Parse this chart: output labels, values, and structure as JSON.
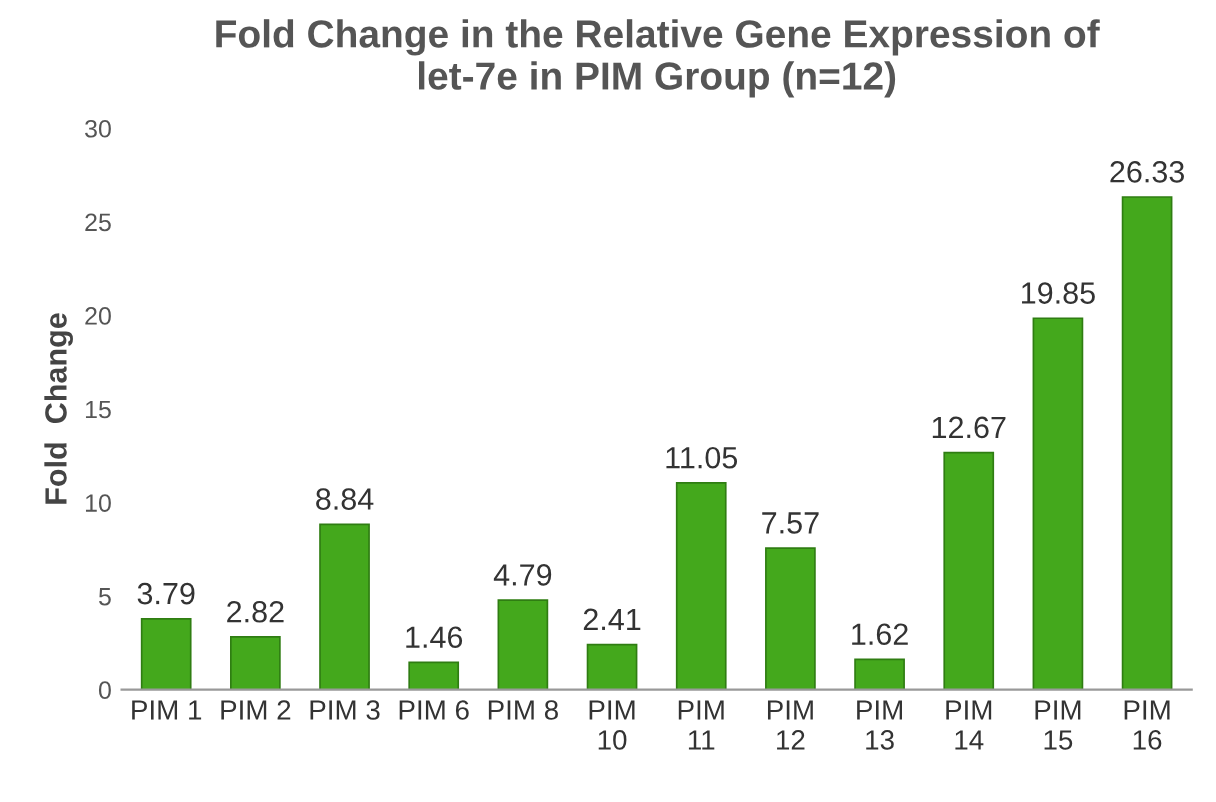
{
  "chart_data": {
    "type": "bar",
    "title": "Fold Change in the Relative Gene Expression of\nlet-7e in PIM Group (n=12)",
    "ylabel": "Fold  Change",
    "categories": [
      "PIM 1",
      "PIM 2",
      "PIM 3",
      "PIM 6",
      "PIM 8",
      "PIM 10",
      "PIM 11",
      "PIM 12",
      "PIM 13",
      "PIM 14",
      "PIM 15",
      "PIM 16"
    ],
    "values": [
      3.79,
      2.82,
      8.84,
      1.46,
      4.79,
      2.41,
      11.05,
      7.57,
      1.62,
      12.67,
      19.85,
      26.33
    ],
    "color": "#44a81c",
    "ylim": [
      0,
      30
    ],
    "yticks": [
      0,
      5,
      10,
      15,
      20,
      25,
      30
    ],
    "grid": false,
    "data_labels": true
  }
}
